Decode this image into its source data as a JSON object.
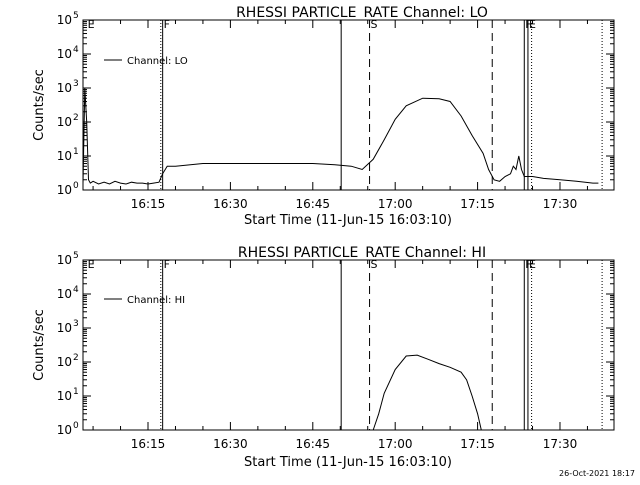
{
  "footer": {
    "date_stamp": "26-Oct-2021 18:17"
  },
  "chart_data": [
    {
      "type": "line",
      "title": "RHESSI PARTICLE_RATE Channel: LO",
      "xlabel": "Start Time (11-Jun-15 16:03:10)",
      "ylabel": "Counts/sec",
      "y_scale": "log",
      "ylim": [
        1,
        100000
      ],
      "xlim": [
        "16:03:10",
        "17:39:50"
      ],
      "x_ticks": [
        "16:15",
        "16:30",
        "16:45",
        "17:00",
        "17:15",
        "17:30"
      ],
      "y_ticks": [
        "10",
        "10",
        "10",
        "10",
        "10",
        "10"
      ],
      "y_tick_exponents": [
        "0",
        "1",
        "2",
        "3",
        "4",
        "5"
      ],
      "legend": {
        "position": "top-left",
        "label": "Channel: LO"
      },
      "flags": [
        {
          "time": "16:03:50",
          "label": "E"
        },
        {
          "time": "16:17:40",
          "label": "F"
        },
        {
          "time": "16:55:20",
          "label": "S"
        },
        {
          "time": "17:23:30",
          "label": "F"
        },
        {
          "time": "17:24:10",
          "label": "E"
        }
      ],
      "markers": [
        {
          "time": "16:17:20",
          "style": "dotted"
        },
        {
          "time": "16:17:40",
          "style": "solid"
        },
        {
          "time": "16:50:10",
          "style": "solid"
        },
        {
          "time": "16:55:20",
          "style": "dashed"
        },
        {
          "time": "17:17:40",
          "style": "dashed"
        },
        {
          "time": "17:23:30",
          "style": "solid"
        },
        {
          "time": "17:24:10",
          "style": "solid"
        },
        {
          "time": "17:24:50",
          "style": "dotted"
        },
        {
          "time": "17:37:40",
          "style": "dotted"
        }
      ],
      "series": [
        {
          "name": "Channel: LO",
          "x": [
            "16:03:10",
            "16:03:30",
            "16:03:50",
            "16:04:10",
            "16:04:30",
            "16:05:00",
            "16:06:00",
            "16:07:00",
            "16:08:00",
            "16:09:00",
            "16:10:00",
            "16:11:00",
            "16:12:00",
            "16:13:00",
            "16:14:00",
            "16:15:00",
            "16:16:00",
            "16:17:00",
            "16:17:40",
            "16:18:30",
            "16:20:00",
            "16:25:00",
            "16:30:00",
            "16:35:00",
            "16:40:00",
            "16:45:00",
            "16:49:00",
            "16:52:00",
            "16:54:00",
            "16:56:00",
            "16:58:00",
            "17:00:00",
            "17:02:00",
            "17:05:00",
            "17:08:00",
            "17:10:00",
            "17:12:00",
            "17:14:00",
            "17:16:00",
            "17:17:00",
            "17:18:00",
            "17:19:00",
            "17:20:00",
            "17:21:00",
            "17:21:30",
            "17:22:00",
            "17:22:30",
            "17:23:00",
            "17:23:30",
            "17:25:00",
            "17:27:00",
            "17:30:00",
            "17:33:00",
            "17:36:00",
            "17:37:00"
          ],
          "y": [
            1.5,
            1000,
            100,
            2,
            1.6,
            1.8,
            1.5,
            1.7,
            1.5,
            1.8,
            1.6,
            1.5,
            1.7,
            1.6,
            1.6,
            1.5,
            1.6,
            1.7,
            3,
            5,
            5,
            6,
            6,
            6,
            6,
            6,
            5.5,
            5,
            4,
            8,
            30,
            120,
            300,
            500,
            480,
            400,
            150,
            40,
            12,
            4,
            2,
            1.8,
            2.5,
            3,
            5,
            4,
            10,
            4,
            2.5,
            2.5,
            2.2,
            2,
            1.8,
            1.6,
            1.6
          ]
        }
      ]
    },
    {
      "type": "line",
      "title": "RHESSI PARTICLE_RATE Channel: HI",
      "xlabel": "Start Time (11-Jun-15 16:03:10)",
      "ylabel": "Counts/sec",
      "y_scale": "log",
      "ylim": [
        1,
        100000
      ],
      "xlim": [
        "16:03:10",
        "17:39:50"
      ],
      "x_ticks": [
        "16:15",
        "16:30",
        "16:45",
        "17:00",
        "17:15",
        "17:30"
      ],
      "y_ticks": [
        "10",
        "10",
        "10",
        "10",
        "10",
        "10"
      ],
      "y_tick_exponents": [
        "0",
        "1",
        "2",
        "3",
        "4",
        "5"
      ],
      "legend": {
        "position": "top-left",
        "label": "Channel: HI"
      },
      "flags": [
        {
          "time": "16:03:50",
          "label": "E"
        },
        {
          "time": "16:17:40",
          "label": "F"
        },
        {
          "time": "16:55:20",
          "label": "S"
        },
        {
          "time": "17:23:30",
          "label": "F"
        },
        {
          "time": "17:24:10",
          "label": "E"
        }
      ],
      "markers": [
        {
          "time": "16:17:20",
          "style": "dotted"
        },
        {
          "time": "16:17:40",
          "style": "solid"
        },
        {
          "time": "16:50:10",
          "style": "solid"
        },
        {
          "time": "16:55:20",
          "style": "dashed"
        },
        {
          "time": "17:17:40",
          "style": "dashed"
        },
        {
          "time": "17:23:30",
          "style": "solid"
        },
        {
          "time": "17:24:10",
          "style": "solid"
        },
        {
          "time": "17:24:50",
          "style": "dotted"
        },
        {
          "time": "17:37:40",
          "style": "dotted"
        }
      ],
      "series": [
        {
          "name": "Channel: HI",
          "x": [
            "16:56:00",
            "16:57:00",
            "16:58:00",
            "17:00:00",
            "17:02:00",
            "17:04:00",
            "17:06:00",
            "17:08:00",
            "17:10:00",
            "17:12:00",
            "17:13:00",
            "17:14:00",
            "17:15:00",
            "17:15:40"
          ],
          "y": [
            1,
            3,
            12,
            60,
            150,
            160,
            120,
            90,
            70,
            50,
            30,
            10,
            3,
            1
          ]
        }
      ]
    }
  ]
}
